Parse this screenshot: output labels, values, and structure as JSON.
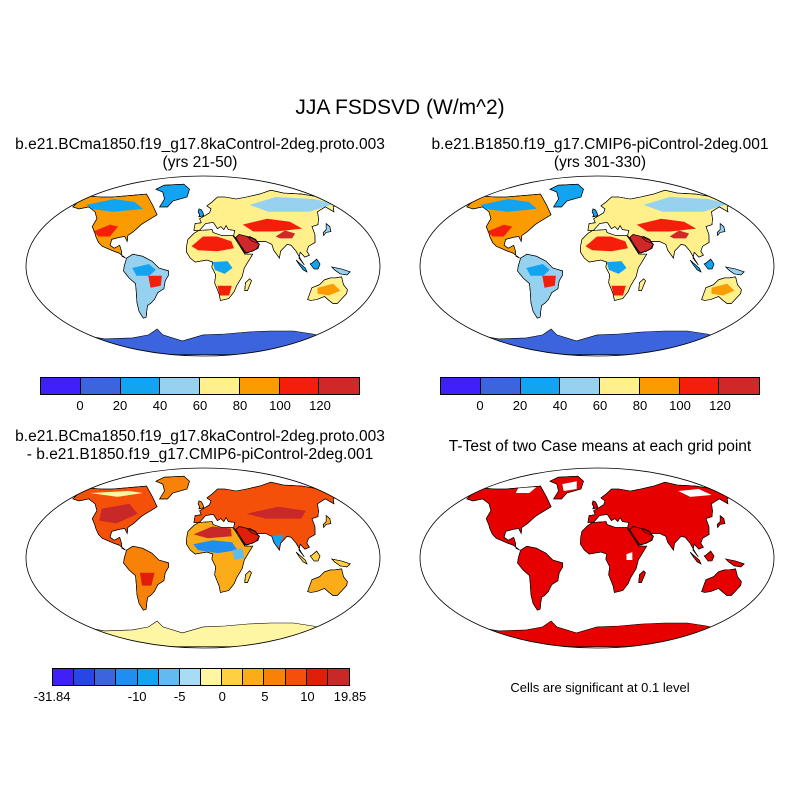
{
  "title": "JJA FSDSVD (W/m^2)",
  "panels": {
    "case": {
      "title_line1": "b.e21.BCma1850.f19_g17.8kaControl-2deg.proto.003",
      "title_line2": "(yrs 21-50)"
    },
    "control": {
      "title_line1": "b.e21.B1850.f19_g17.CMIP6-piControl-2deg.001",
      "title_line2": "(yrs 301-330)"
    },
    "difference": {
      "title_line1": "b.e21.BCma1850.f19_g17.8kaControl-2deg.proto.003",
      "title_line2": "- b.e21.B1850.f19_g17.CMIP6-piControl-2deg.001"
    },
    "ttest": {
      "title_line1": "T-Test of two Case means at each grid point",
      "note": "Cells are significant at 0.1 level"
    }
  },
  "colorbars": {
    "absolute": {
      "colors": [
        "#4020f8",
        "#3c64dc",
        "#12a4f0",
        "#96d2f0",
        "#fff08c",
        "#fa9b00",
        "#f51e0a",
        "#d02828"
      ],
      "labels": [
        "0",
        "20",
        "40",
        "60",
        "80",
        "100",
        "120"
      ]
    },
    "difference": {
      "colors": [
        "#4020f8",
        "#2846e6",
        "#3c64dc",
        "#1e8ef0",
        "#12a4f0",
        "#60bcf0",
        "#a8dcf4",
        "#fff6a4",
        "#ffd040",
        "#fcac18",
        "#f88208",
        "#f5500a",
        "#e01e0a",
        "#c82828"
      ],
      "labels": [
        "-31.84",
        "-10",
        "-5",
        "0",
        "5",
        "10",
        "19.85"
      ]
    }
  },
  "map_colors": {
    "ocean": "#ffffff",
    "antarctica_abs": "#3c64dc",
    "antarctica_diff": "#fff6a4",
    "significant": "#e60000",
    "coast": "#000000"
  }
}
